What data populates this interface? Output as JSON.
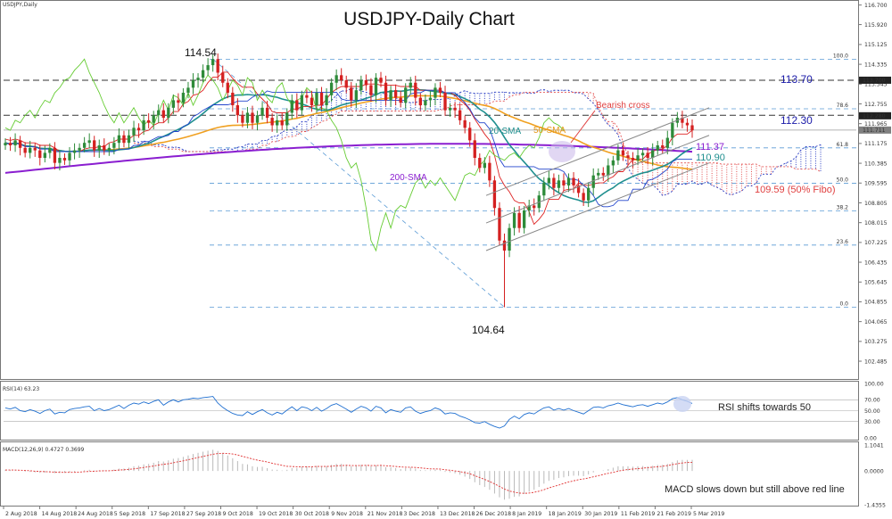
{
  "chart_data": {
    "type": "candlestick",
    "title": "USDJPY-Daily Chart",
    "symbol_label": "USDJPY,Daily",
    "price_axis": {
      "ylim": [
        101.81,
        116.83
      ],
      "ticks": [
        "116.700",
        "115.920",
        "115.125",
        "114.335",
        "113.545",
        "112.755",
        "111.965",
        "111.175",
        "110.385",
        "109.595",
        "108.805",
        "108.015",
        "107.225",
        "106.435",
        "105.645",
        "104.855",
        "104.065",
        "103.275",
        "102.485",
        "101.695"
      ],
      "current_price_tags": [
        {
          "value": 113.7,
          "label": "113.700"
        },
        {
          "value": 112.28,
          "label": "112.280"
        },
        {
          "value": 111.71,
          "label": "111.711"
        }
      ]
    },
    "fib_levels": [
      {
        "label": "100.0",
        "value": 114.54
      },
      {
        "label": "78.6",
        "value": 112.56
      },
      {
        "label": "61.8",
        "value": 111.0
      },
      {
        "label": "50.0",
        "value": 109.59
      },
      {
        "label": "38.2",
        "value": 108.48
      },
      {
        "label": "23.6",
        "value": 107.12
      },
      {
        "label": "0.0",
        "value": 104.64
      }
    ],
    "horizontal_levels": [
      {
        "value": 113.7,
        "label": "113.70"
      },
      {
        "value": 112.3,
        "label": "112.30"
      }
    ],
    "annotations": {
      "high": "114.54",
      "low": "104.64",
      "bearish_cross": "Bearish cross",
      "sma20": "20-SMA",
      "sma50": "50-SMA",
      "sma200": "200-SMA",
      "level_111_37": "111.37",
      "level_110_90": "110.90",
      "fibo_text": "109.59 (50% Fibo)"
    },
    "x_labels": [
      "2 Aug 2018",
      "14 Aug 2018",
      "24 Aug 2018",
      "5 Sep 2018",
      "17 Sep 2018",
      "27 Sep 2018",
      "9 Oct 2018",
      "19 Oct 2018",
      "30 Oct 2018",
      "9 Nov 2018",
      "21 Nov 2018",
      "3 Dec 2018",
      "13 Dec 2018",
      "26 Dec 2018",
      "8 Jan 2019",
      "18 Jan 2019",
      "30 Jan 2019",
      "11 Feb 2019",
      "21 Feb 2019",
      "5 Mar 2019"
    ],
    "candles_close": [
      111.2,
      111.1,
      111.3,
      111.0,
      110.8,
      111.0,
      110.9,
      110.6,
      110.8,
      111.0,
      110.4,
      110.6,
      110.5,
      110.8,
      110.9,
      111.0,
      111.2,
      111.3,
      110.9,
      111.1,
      110.9,
      111.0,
      111.2,
      111.5,
      111.2,
      111.5,
      111.8,
      111.7,
      112.1,
      112.0,
      112.3,
      112.5,
      112.2,
      112.6,
      112.9,
      112.8,
      113.2,
      113.4,
      113.7,
      113.8,
      114.1,
      114.3,
      114.54,
      114.0,
      113.6,
      113.2,
      112.7,
      112.3,
      112.0,
      112.4,
      112.0,
      112.3,
      112.6,
      112.2,
      111.9,
      112.1,
      111.9,
      112.4,
      112.9,
      112.5,
      113.1,
      113.0,
      112.7,
      113.2,
      112.7,
      113.1,
      113.6,
      113.9,
      113.7,
      113.4,
      112.9,
      113.3,
      113.7,
      113.5,
      113.1,
      113.8,
      113.6,
      112.9,
      113.3,
      113.0,
      112.8,
      113.4,
      113.6,
      113.0,
      112.7,
      112.9,
      113.0,
      113.4,
      113.2,
      112.5,
      112.6,
      112.5,
      112.1,
      111.8,
      111.3,
      110.6,
      110.2,
      110.4,
      109.7,
      108.6,
      107.3,
      106.9,
      107.8,
      108.4,
      107.8,
      108.5,
      108.7,
      108.6,
      109.1,
      109.6,
      109.8,
      109.4,
      109.7,
      109.5,
      109.8,
      109.5,
      109.2,
      108.9,
      109.4,
      109.9,
      110.0,
      109.9,
      110.3,
      110.5,
      110.9,
      110.7,
      110.6,
      110.5,
      110.7,
      110.8,
      110.6,
      110.9,
      111.1,
      111.0,
      111.4,
      112.0,
      112.2,
      112.0,
      111.9,
      111.7
    ],
    "series": [
      {
        "name": "20-SMA",
        "color": "#1f8f8f"
      },
      {
        "name": "50-SMA",
        "color": "#f0a020"
      },
      {
        "name": "200-SMA",
        "color": "#8a1ed0",
        "start": 110.0,
        "end": 111.37
      },
      {
        "name": "Chikou",
        "color": "#66cc33"
      },
      {
        "name": "Tenkan",
        "color": "#dd2222"
      },
      {
        "name": "Kijun",
        "color": "#2244cc"
      }
    ],
    "rsi": {
      "label": "RSI(14) 63.23",
      "ylim": [
        0,
        100
      ],
      "ticks": [
        "100.00",
        "70.00",
        "50.00",
        "30.00",
        "0.00"
      ],
      "annotation": "RSI shifts towards 50",
      "values": [
        55,
        53,
        56,
        50,
        48,
        52,
        49,
        45,
        50,
        53,
        44,
        47,
        46,
        52,
        54,
        55,
        57,
        58,
        50,
        54,
        50,
        52,
        56,
        60,
        54,
        60,
        64,
        62,
        66,
        63,
        67,
        70,
        60,
        66,
        70,
        66,
        70,
        71,
        73,
        72,
        74,
        75,
        76,
        64,
        56,
        50,
        45,
        42,
        41,
        48,
        43,
        48,
        52,
        46,
        42,
        47,
        44,
        51,
        57,
        50,
        57,
        55,
        50,
        56,
        49,
        54,
        60,
        63,
        58,
        53,
        47,
        53,
        58,
        55,
        49,
        58,
        55,
        46,
        52,
        49,
        47,
        55,
        57,
        49,
        45,
        48,
        50,
        55,
        52,
        44,
        46,
        45,
        40,
        37,
        33,
        28,
        27,
        30,
        25,
        21,
        18,
        22,
        34,
        40,
        35,
        43,
        46,
        44,
        50,
        55,
        57,
        51,
        54,
        51,
        54,
        50,
        47,
        44,
        50,
        56,
        57,
        55,
        59,
        61,
        64,
        61,
        59,
        57,
        60,
        61,
        58,
        61,
        64,
        62,
        66,
        72,
        74,
        70,
        67,
        63.23
      ]
    },
    "macd": {
      "label": "MACD(12,26,9) 0.4727 0.3699",
      "ticks": [
        "1.1041",
        "0.0000",
        "-1.4355"
      ],
      "annotation": "MACD slows down but still above red line",
      "hist": [
        0.05,
        0.03,
        0.02,
        0.0,
        -0.03,
        -0.04,
        -0.06,
        -0.08,
        -0.07,
        -0.05,
        -0.09,
        -0.08,
        -0.08,
        -0.05,
        -0.03,
        0.0,
        0.03,
        0.05,
        0.02,
        0.03,
        0.02,
        0.03,
        0.06,
        0.1,
        0.1,
        0.14,
        0.2,
        0.22,
        0.28,
        0.3,
        0.35,
        0.42,
        0.4,
        0.45,
        0.52,
        0.55,
        0.6,
        0.66,
        0.72,
        0.77,
        0.82,
        0.86,
        0.9,
        0.85,
        0.76,
        0.66,
        0.54,
        0.42,
        0.3,
        0.28,
        0.2,
        0.17,
        0.18,
        0.12,
        0.06,
        0.05,
        0.02,
        0.05,
        0.12,
        0.12,
        0.18,
        0.2,
        0.18,
        0.21,
        0.18,
        0.2,
        0.26,
        0.3,
        0.3,
        0.26,
        0.2,
        0.22,
        0.26,
        0.25,
        0.2,
        0.24,
        0.24,
        0.16,
        0.16,
        0.12,
        0.08,
        0.12,
        0.15,
        0.1,
        0.04,
        0.03,
        0.03,
        0.06,
        0.04,
        -0.04,
        -0.06,
        -0.1,
        -0.16,
        -0.24,
        -0.34,
        -0.48,
        -0.6,
        -0.68,
        -0.8,
        -0.96,
        -1.12,
        -1.22,
        -1.18,
        -1.1,
        -1.08,
        -0.98,
        -0.88,
        -0.8,
        -0.68,
        -0.54,
        -0.42,
        -0.38,
        -0.3,
        -0.27,
        -0.22,
        -0.2,
        -0.2,
        -0.22,
        -0.15,
        -0.06,
        0.0,
        0.02,
        0.08,
        0.14,
        0.2,
        0.2,
        0.2,
        0.18,
        0.2,
        0.21,
        0.2,
        0.22,
        0.26,
        0.26,
        0.3,
        0.38,
        0.45,
        0.47,
        0.47,
        0.4727
      ],
      "signal": [
        0.04,
        0.04,
        0.04,
        0.03,
        0.02,
        0.01,
        -0.01,
        -0.02,
        -0.03,
        -0.04,
        -0.05,
        -0.06,
        -0.06,
        -0.06,
        -0.06,
        -0.05,
        -0.03,
        -0.02,
        -0.01,
        0.0,
        0.01,
        0.01,
        0.02,
        0.04,
        0.05,
        0.07,
        0.09,
        0.12,
        0.15,
        0.18,
        0.21,
        0.25,
        0.28,
        0.31,
        0.35,
        0.39,
        0.43,
        0.48,
        0.52,
        0.57,
        0.62,
        0.66,
        0.71,
        0.74,
        0.75,
        0.74,
        0.72,
        0.68,
        0.62,
        0.57,
        0.51,
        0.46,
        0.42,
        0.38,
        0.33,
        0.28,
        0.24,
        0.2,
        0.19,
        0.18,
        0.18,
        0.18,
        0.18,
        0.19,
        0.19,
        0.19,
        0.2,
        0.22,
        0.23,
        0.24,
        0.23,
        0.23,
        0.23,
        0.24,
        0.23,
        0.23,
        0.24,
        0.22,
        0.21,
        0.19,
        0.17,
        0.16,
        0.16,
        0.15,
        0.13,
        0.11,
        0.09,
        0.09,
        0.08,
        0.05,
        0.03,
        0.0,
        -0.03,
        -0.07,
        -0.12,
        -0.2,
        -0.28,
        -0.36,
        -0.45,
        -0.55,
        -0.66,
        -0.77,
        -0.85,
        -0.9,
        -0.94,
        -0.95,
        -0.94,
        -0.91,
        -0.86,
        -0.8,
        -0.72,
        -0.66,
        -0.6,
        -0.53,
        -0.47,
        -0.42,
        -0.37,
        -0.34,
        -0.3,
        -0.25,
        -0.2,
        -0.15,
        -0.1,
        -0.06,
        -0.01,
        0.03,
        0.06,
        0.08,
        0.1,
        0.12,
        0.14,
        0.16,
        0.18,
        0.2,
        0.23,
        0.27,
        0.31,
        0.34,
        0.36,
        0.3699
      ]
    }
  }
}
